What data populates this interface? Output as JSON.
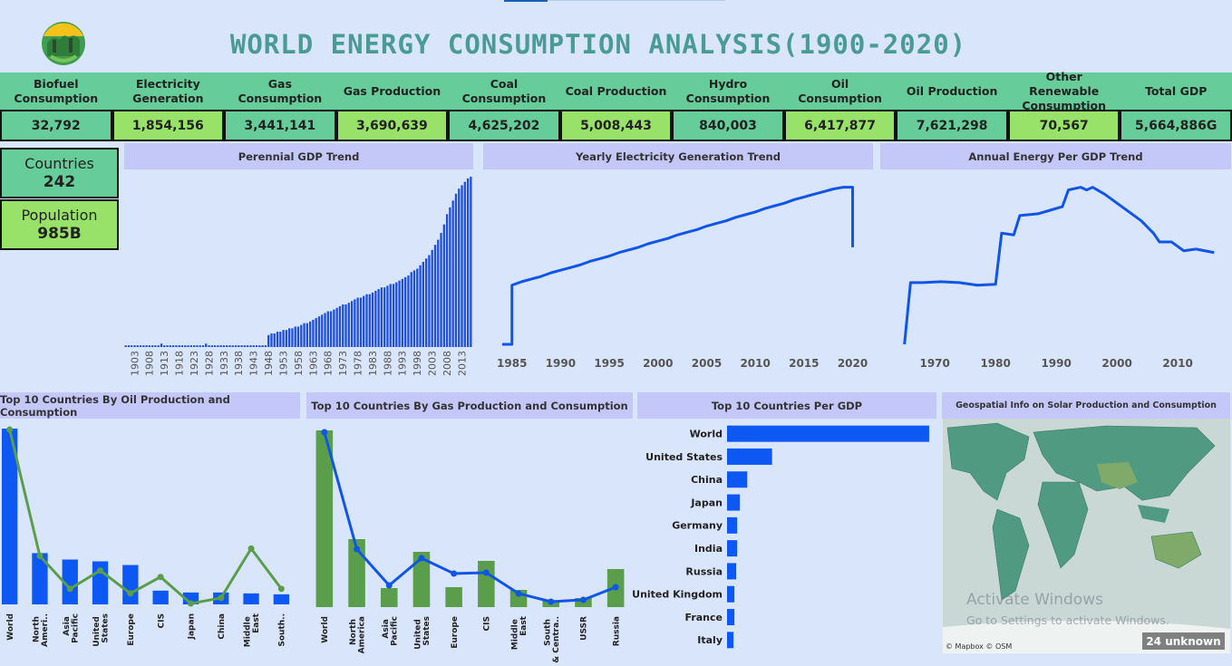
{
  "header": {
    "title": "WORLD ENERGY CONSUMPTION ANALYSIS(1900-2020)"
  },
  "kpis": [
    {
      "label": "Biofuel Consumption",
      "value": "32,792"
    },
    {
      "label": "Electricity Generation",
      "value": "1,854,156"
    },
    {
      "label": "Gas Consumption",
      "value": "3,441,141"
    },
    {
      "label": "Gas Production",
      "value": "3,690,639"
    },
    {
      "label": "Coal Consumption",
      "value": "4,625,202"
    },
    {
      "label": "Coal Production",
      "value": "5,008,443"
    },
    {
      "label": "Hydro Consumption",
      "value": "840,003"
    },
    {
      "label": "Oil Consumption",
      "value": "6,417,877"
    },
    {
      "label": "Oil Production",
      "value": "7,621,298"
    },
    {
      "label": "Other Renewable Consumption",
      "value": "70,567"
    },
    {
      "label": "Total GDP",
      "value": "5,664,886G"
    }
  ],
  "cards": [
    {
      "label": "Countries",
      "value": "242"
    },
    {
      "label": "Population",
      "value": "985B"
    }
  ],
  "chart_data": [
    {
      "type": "bar",
      "title": "Perennial GDP Trend",
      "color": "#1f4fd6",
      "categories": [
        null,
        null,
        null,
        "1903",
        null,
        null,
        null,
        null,
        "1908",
        null,
        null,
        null,
        null,
        "1913",
        null,
        null,
        null,
        null,
        "1918",
        null,
        null,
        null,
        null,
        "1923",
        null,
        null,
        null,
        null,
        "1928",
        null,
        null,
        null,
        null,
        "1933",
        null,
        null,
        null,
        null,
        "1938",
        null,
        null,
        null,
        null,
        "1943",
        null,
        null,
        null,
        null,
        "1948",
        null,
        null,
        null,
        null,
        "1953",
        null,
        null,
        null,
        null,
        "1958",
        null,
        null,
        null,
        null,
        "1963",
        null,
        null,
        null,
        null,
        "1968",
        null,
        null,
        null,
        null,
        "1973",
        null,
        null,
        null,
        null,
        "1978",
        null,
        null,
        null,
        null,
        "1983",
        null,
        null,
        null,
        null,
        "1988",
        null,
        null,
        null,
        null,
        "1993",
        null,
        null,
        null,
        null,
        "1998",
        null,
        null,
        null,
        null,
        "2003",
        null,
        null,
        null,
        null,
        "2008",
        null,
        null,
        null,
        null,
        "2013",
        null,
        null,
        null
      ],
      "values": [
        1,
        1,
        1,
        1,
        1,
        1,
        1,
        1,
        1,
        1,
        1,
        1,
        2,
        1,
        1,
        1,
        1,
        1,
        1,
        1,
        1,
        1,
        1,
        1,
        1,
        1,
        1,
        2,
        1,
        1,
        1,
        1,
        1,
        1,
        1,
        1,
        1,
        1,
        1,
        1,
        1,
        1,
        1,
        1,
        1,
        1,
        1,
        1,
        7,
        8,
        8,
        9,
        9,
        10,
        10,
        11,
        11,
        12,
        12,
        13,
        14,
        14,
        15,
        16,
        17,
        18,
        19,
        20,
        21,
        21,
        22,
        23,
        24,
        25,
        25,
        26,
        27,
        28,
        29,
        29,
        30,
        31,
        31,
        32,
        33,
        34,
        35,
        35,
        36,
        37,
        37,
        38,
        39,
        40,
        41,
        42,
        44,
        45,
        46,
        48,
        50,
        52,
        54,
        57,
        60,
        63,
        67,
        72,
        78,
        82,
        86,
        90,
        93,
        95,
        97,
        99,
        100
      ],
      "ylim": [
        0,
        100
      ]
    },
    {
      "type": "line",
      "title": "Yearly Electricity Generation Trend",
      "x": [
        1984,
        1985,
        1985,
        1986,
        1987,
        1988,
        1989,
        1990,
        1991,
        1992,
        1993,
        1994,
        1995,
        1996,
        1997,
        1998,
        1999,
        2000,
        2001,
        2002,
        2003,
        2004,
        2005,
        2006,
        2007,
        2008,
        2009,
        2010,
        2011,
        2012,
        2013,
        2014,
        2015,
        2016,
        2017,
        2018,
        2019,
        2020,
        2020
      ],
      "series": [
        {
          "color": "#1155e6",
          "values": [
            0,
            0,
            67,
            71,
            74,
            77,
            81,
            84,
            87,
            90,
            94,
            97,
            100,
            104,
            107,
            110,
            114,
            117,
            120,
            124,
            127,
            130,
            134,
            137,
            140,
            144,
            147,
            150,
            154,
            157,
            160,
            164,
            167,
            170,
            173,
            176,
            178,
            178,
            110
          ]
        }
      ],
      "xlim": [
        1984,
        2022
      ],
      "xticks": [
        1985,
        1990,
        1995,
        2000,
        2005,
        2010,
        2015,
        2020
      ],
      "ylim": [
        0,
        190
      ]
    },
    {
      "type": "line",
      "title": "Annual Energy Per GDP Trend",
      "x": [
        1965,
        1966,
        1968,
        1971,
        1974,
        1977,
        1980,
        1981,
        1983,
        1984,
        1987,
        1989,
        1991,
        1992,
        1994,
        1995,
        1996,
        1998,
        2000,
        2002,
        2004,
        2006,
        2007,
        2009,
        2011,
        2013,
        2016
      ],
      "series": [
        {
          "color": "#1155e6",
          "values": [
            0,
            70,
            70,
            71,
            70,
            67,
            68,
            126,
            124,
            146,
            148,
            152,
            156,
            175,
            178,
            175,
            178,
            170,
            160,
            150,
            140,
            126,
            116,
            116,
            106,
            108,
            104
          ]
        }
      ],
      "xlim": [
        1964,
        2017
      ],
      "xticks": [
        1970,
        1980,
        1990,
        2000,
        2010
      ],
      "ylim": [
        0,
        190
      ]
    },
    {
      "type": "combo",
      "title": "Top 10 Countries By Oil Production and Consumption",
      "categories": [
        "World",
        "North Ameri..",
        "Asia Pacific",
        "United States",
        "Europe",
        "CIS",
        "Japan",
        "China",
        "Middle East",
        "South.."
      ],
      "series": [
        {
          "type": "bar",
          "color": "#0d57f2",
          "values": [
            192,
            56,
            49,
            47,
            43,
            15,
            13,
            13,
            12,
            11
          ]
        },
        {
          "type": "line",
          "color": "#5a9e4b",
          "values": [
            191,
            53,
            17,
            37,
            12,
            30,
            1,
            7,
            61,
            17
          ]
        }
      ],
      "ylim": [
        0,
        195
      ]
    },
    {
      "type": "combo",
      "title": "Top 10 Countries By Gas Production and Consumption",
      "categories": [
        "World",
        "North America",
        "Asia Pacific",
        "United States",
        "Europe",
        "CIS",
        "Middle East",
        "South & Centra..",
        "USSR",
        "Russia"
      ],
      "series": [
        {
          "type": "bar",
          "color": "#5a9e4b",
          "values": [
            195,
            75,
            21,
            61,
            22,
            51,
            19,
            7,
            10,
            42
          ]
        },
        {
          "type": "line",
          "color": "#1155e6",
          "values": [
            193,
            64,
            24,
            54,
            37,
            38,
            15,
            6,
            8,
            22
          ]
        }
      ],
      "ylim": [
        0,
        200
      ]
    },
    {
      "type": "hbar",
      "title": "Top 10 Countries Per GDP",
      "color": "#0d57f2",
      "categories": [
        "World",
        "United States",
        "China",
        "Japan",
        "Germany",
        "India",
        "Russia",
        "United Kingdom",
        "France",
        "Italy"
      ],
      "values": [
        220,
        49,
        22,
        14,
        11,
        11,
        10,
        8,
        8,
        7
      ],
      "xlim": [
        0,
        225
      ]
    }
  ],
  "map": {
    "title": "Geospatial Info on Solar Production and Consumption",
    "attribution": "© Mapbox © OSM",
    "badge": "24 unknown"
  },
  "watermark": {
    "title": "Activate Windows",
    "text": "Go to Settings to activate Windows."
  }
}
